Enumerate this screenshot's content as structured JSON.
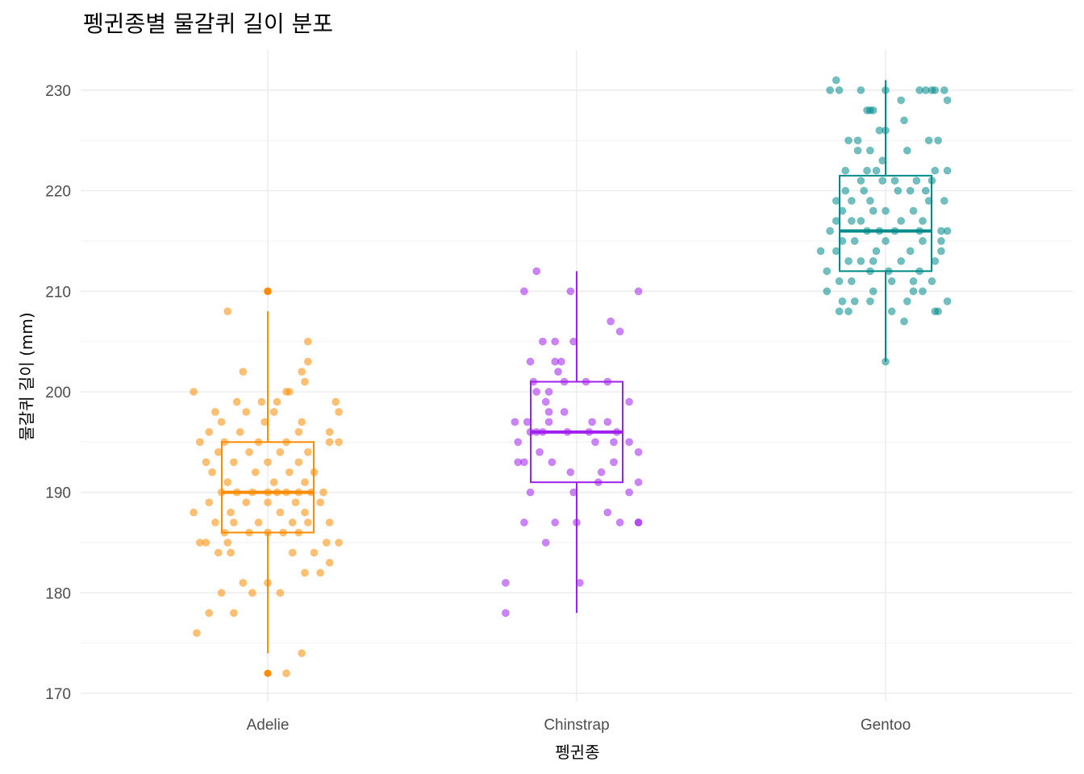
{
  "chart_data": {
    "type": "boxplot",
    "title": "펭귄종별 물갈퀴 길이 분포",
    "xlabel": "펭귄종",
    "ylabel": "물갈퀴 길이 (mm)",
    "ylim": [
      169.2,
      234.0
    ],
    "yticks": [
      170,
      180,
      190,
      200,
      210,
      220,
      230
    ],
    "grid": "on",
    "legend": "none",
    "categories": [
      "Adelie",
      "Chinstrap",
      "Gentoo"
    ],
    "series": [
      {
        "category": "Adelie",
        "color": "#FF8C00",
        "box": {
          "min": 174,
          "q1": 186,
          "median": 190,
          "q3": 195,
          "max": 208
        },
        "outliers": [
          172,
          210
        ],
        "points": [
          [
            -0.23,
            176
          ],
          [
            -0.19,
            178
          ],
          [
            0.06,
            172
          ],
          [
            0.11,
            174
          ],
          [
            -0.11,
            178
          ],
          [
            -0.05,
            180
          ],
          [
            0.04,
            180
          ],
          [
            0.0,
            181
          ],
          [
            -0.15,
            180
          ],
          [
            -0.08,
            181
          ],
          [
            0.12,
            182
          ],
          [
            0.17,
            182
          ],
          [
            0.2,
            183
          ],
          [
            -0.16,
            184
          ],
          [
            -0.12,
            184
          ],
          [
            0.08,
            184
          ],
          [
            0.15,
            184
          ],
          [
            -0.22,
            185
          ],
          [
            -0.2,
            185
          ],
          [
            -0.13,
            185
          ],
          [
            0.19,
            185
          ],
          [
            0.23,
            185
          ],
          [
            -0.14,
            186
          ],
          [
            -0.06,
            186
          ],
          [
            0.0,
            186
          ],
          [
            0.05,
            186
          ],
          [
            0.1,
            186
          ],
          [
            -0.17,
            187
          ],
          [
            -0.11,
            187
          ],
          [
            -0.03,
            187
          ],
          [
            0.08,
            187
          ],
          [
            0.13,
            187
          ],
          [
            0.2,
            187
          ],
          [
            -0.24,
            188
          ],
          [
            -0.12,
            188
          ],
          [
            0.04,
            188
          ],
          [
            0.12,
            188
          ],
          [
            -0.19,
            189
          ],
          [
            -0.07,
            189
          ],
          [
            0.0,
            189
          ],
          [
            0.09,
            189
          ],
          [
            0.17,
            189
          ],
          [
            -0.15,
            190
          ],
          [
            -0.1,
            190
          ],
          [
            -0.05,
            190
          ],
          [
            0.0,
            190
          ],
          [
            0.03,
            190
          ],
          [
            0.06,
            190
          ],
          [
            0.1,
            190
          ],
          [
            0.14,
            190
          ],
          [
            0.18,
            190
          ],
          [
            -0.13,
            191
          ],
          [
            0.02,
            191
          ],
          [
            0.12,
            191
          ],
          [
            -0.18,
            192
          ],
          [
            -0.04,
            192
          ],
          [
            0.07,
            192
          ],
          [
            0.15,
            192
          ],
          [
            -0.11,
            193
          ],
          [
            0.0,
            193
          ],
          [
            0.1,
            193
          ],
          [
            -0.2,
            193
          ],
          [
            -0.16,
            194
          ],
          [
            -0.06,
            194
          ],
          [
            0.04,
            194
          ],
          [
            0.13,
            194
          ],
          [
            -0.14,
            195
          ],
          [
            -0.03,
            195
          ],
          [
            0.06,
            195
          ],
          [
            0.2,
            195
          ],
          [
            0.23,
            195
          ],
          [
            -0.22,
            195
          ],
          [
            -0.09,
            196
          ],
          [
            0.1,
            196
          ],
          [
            0.2,
            196
          ],
          [
            -0.19,
            196
          ],
          [
            -0.01,
            197
          ],
          [
            -0.15,
            197
          ],
          [
            0.11,
            197
          ],
          [
            0.02,
            198
          ],
          [
            -0.07,
            198
          ],
          [
            -0.17,
            198
          ],
          [
            0.23,
            198
          ],
          [
            -0.1,
            199
          ],
          [
            0.03,
            199
          ],
          [
            0.22,
            199
          ],
          [
            -0.02,
            199
          ],
          [
            0.06,
            200
          ],
          [
            -0.24,
            200
          ],
          [
            0.07,
            200
          ],
          [
            -0.08,
            202
          ],
          [
            0.11,
            202
          ],
          [
            0.12,
            201
          ],
          [
            0.13,
            203
          ],
          [
            0.13,
            205
          ],
          [
            -0.13,
            208
          ],
          [
            0.0,
            210
          ],
          [
            0.0,
            210
          ]
        ]
      },
      {
        "category": "Chinstrap",
        "color": "#A020F0",
        "box": {
          "min": 178,
          "q1": 191,
          "median": 196,
          "q3": 201,
          "max": 212
        },
        "outliers": [],
        "points": [
          [
            -0.23,
            178
          ],
          [
            -0.23,
            181
          ],
          [
            0.01,
            181
          ],
          [
            -0.1,
            185
          ],
          [
            -0.07,
            187
          ],
          [
            0.0,
            187
          ],
          [
            0.14,
            187
          ],
          [
            0.2,
            187
          ],
          [
            0.2,
            187
          ],
          [
            -0.17,
            187
          ],
          [
            0.1,
            188
          ],
          [
            0.17,
            190
          ],
          [
            -0.15,
            190
          ],
          [
            -0.01,
            190
          ],
          [
            0.2,
            191
          ],
          [
            0.07,
            191
          ],
          [
            -0.02,
            192
          ],
          [
            0.08,
            192
          ],
          [
            0.12,
            193
          ],
          [
            -0.08,
            193
          ],
          [
            -0.17,
            193
          ],
          [
            -0.19,
            193
          ],
          [
            0.2,
            194
          ],
          [
            -0.12,
            194
          ],
          [
            -0.19,
            195
          ],
          [
            0.06,
            195
          ],
          [
            0.12,
            195
          ],
          [
            0.17,
            195
          ],
          [
            -0.11,
            196
          ],
          [
            -0.13,
            196
          ],
          [
            0.04,
            196
          ],
          [
            0.13,
            196
          ],
          [
            -0.15,
            196
          ],
          [
            -0.03,
            196
          ],
          [
            -0.09,
            197
          ],
          [
            -0.16,
            197
          ],
          [
            -0.2,
            197
          ],
          [
            0.05,
            197
          ],
          [
            0.1,
            197
          ],
          [
            -0.09,
            198
          ],
          [
            -0.04,
            198
          ],
          [
            0.17,
            199
          ],
          [
            -0.1,
            199
          ],
          [
            -0.13,
            200
          ],
          [
            -0.09,
            200
          ],
          [
            0.03,
            201
          ],
          [
            0.1,
            201
          ],
          [
            -0.14,
            201
          ],
          [
            -0.04,
            201
          ],
          [
            -0.06,
            202
          ],
          [
            -0.15,
            203
          ],
          [
            -0.05,
            203
          ],
          [
            -0.07,
            203
          ],
          [
            -0.11,
            205
          ],
          [
            -0.07,
            205
          ],
          [
            -0.01,
            205
          ],
          [
            0.11,
            207
          ],
          [
            0.14,
            206
          ],
          [
            0.2,
            210
          ],
          [
            -0.17,
            210
          ],
          [
            -0.02,
            210
          ],
          [
            -0.13,
            212
          ]
        ]
      },
      {
        "category": "Gentoo",
        "color": "#008B8B",
        "box": {
          "min": 203,
          "q1": 212,
          "median": 216,
          "q3": 221.5,
          "max": 231
        },
        "outliers": [],
        "points": [
          [
            0.0,
            203
          ],
          [
            0.06,
            207
          ],
          [
            -0.12,
            208
          ],
          [
            0.02,
            208
          ],
          [
            0.17,
            208
          ],
          [
            -0.15,
            208
          ],
          [
            0.16,
            208
          ],
          [
            -0.05,
            209
          ],
          [
            -0.1,
            209
          ],
          [
            0.07,
            209
          ],
          [
            0.2,
            209
          ],
          [
            -0.14,
            209
          ],
          [
            0.12,
            210
          ],
          [
            -0.04,
            210
          ],
          [
            0.09,
            210
          ],
          [
            -0.19,
            210
          ],
          [
            0.02,
            211
          ],
          [
            -0.11,
            211
          ],
          [
            0.09,
            211
          ],
          [
            0.15,
            211
          ],
          [
            -0.15,
            211
          ],
          [
            -0.05,
            212
          ],
          [
            0.01,
            212
          ],
          [
            0.11,
            212
          ],
          [
            -0.19,
            212
          ],
          [
            -0.04,
            213
          ],
          [
            -0.08,
            213
          ],
          [
            0.05,
            213
          ],
          [
            0.16,
            213
          ],
          [
            -0.12,
            213
          ],
          [
            -0.16,
            214
          ],
          [
            -0.03,
            214
          ],
          [
            0.08,
            214
          ],
          [
            0.18,
            214
          ],
          [
            -0.21,
            214
          ],
          [
            -0.1,
            215
          ],
          [
            0.0,
            215
          ],
          [
            0.12,
            215
          ],
          [
            0.18,
            215
          ],
          [
            -0.14,
            215
          ],
          [
            -0.06,
            216
          ],
          [
            -0.02,
            216
          ],
          [
            0.03,
            216
          ],
          [
            0.11,
            216
          ],
          [
            0.18,
            216
          ],
          [
            0.2,
            216
          ],
          [
            -0.18,
            216
          ],
          [
            -0.08,
            217
          ],
          [
            0.05,
            217
          ],
          [
            0.12,
            217
          ],
          [
            -0.11,
            217
          ],
          [
            -0.16,
            217
          ],
          [
            0.0,
            218
          ],
          [
            0.09,
            218
          ],
          [
            -0.04,
            218
          ],
          [
            -0.14,
            218
          ],
          [
            -0.05,
            219
          ],
          [
            0.14,
            219
          ],
          [
            0.19,
            219
          ],
          [
            -0.16,
            219
          ],
          [
            -0.11,
            219
          ],
          [
            0.08,
            220
          ],
          [
            0.04,
            220
          ],
          [
            -0.07,
            220
          ],
          [
            0.13,
            220
          ],
          [
            -0.13,
            220
          ],
          [
            0.03,
            221
          ],
          [
            0.1,
            221
          ],
          [
            -0.08,
            221
          ],
          [
            -0.01,
            221
          ],
          [
            0.15,
            221
          ],
          [
            0.2,
            222
          ],
          [
            0.16,
            222
          ],
          [
            -0.06,
            222
          ],
          [
            -0.03,
            222
          ],
          [
            -0.13,
            222
          ],
          [
            -0.01,
            223
          ],
          [
            -0.09,
            224
          ],
          [
            -0.05,
            224
          ],
          [
            0.14,
            225
          ],
          [
            0.17,
            225
          ],
          [
            -0.12,
            225
          ],
          [
            -0.09,
            225
          ],
          [
            0.07,
            224
          ],
          [
            -0.02,
            226
          ],
          [
            0.0,
            226
          ],
          [
            0.06,
            227
          ],
          [
            -0.06,
            228
          ],
          [
            -0.04,
            228
          ],
          [
            -0.05,
            228
          ],
          [
            0.05,
            229
          ],
          [
            -0.18,
            230
          ],
          [
            0.0,
            230
          ],
          [
            0.11,
            230
          ],
          [
            0.13,
            230
          ],
          [
            0.19,
            230
          ],
          [
            -0.16,
            231
          ],
          [
            -0.08,
            230
          ],
          [
            0.2,
            229
          ],
          [
            0.15,
            230
          ],
          [
            0.16,
            230
          ],
          [
            -0.15,
            230
          ]
        ]
      }
    ]
  }
}
